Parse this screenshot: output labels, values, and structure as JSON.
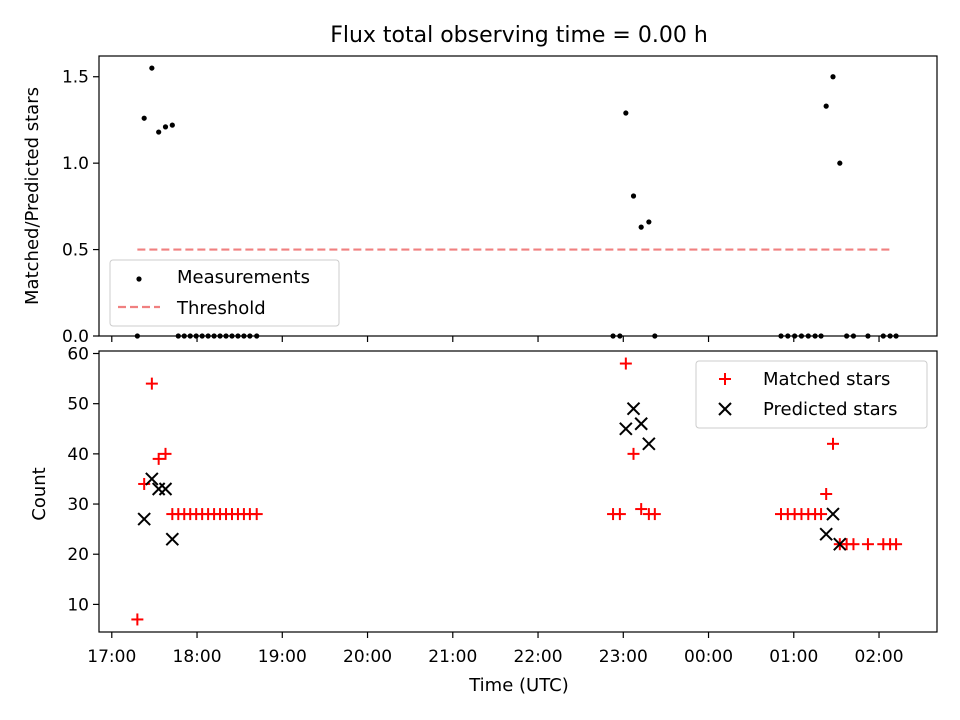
{
  "figure": {
    "title": "Flux total observing time = 0.00 h"
  },
  "chart_data": [
    {
      "type": "scatter",
      "title": "Flux total observing time = 0.00 h",
      "xlabel": "",
      "ylabel": "Matched/Predicted stars",
      "xlim": [
        16.85,
        26.68
      ],
      "ylim": [
        0,
        1.62
      ],
      "yticks": [
        0.0,
        0.5,
        1.0,
        1.5
      ],
      "ytick_labels": [
        "0.0",
        "0.5",
        "1.0",
        "1.5"
      ],
      "legend": {
        "position": "lower-left",
        "entries": [
          "Measurements",
          "Threshold"
        ]
      },
      "series": [
        {
          "name": "Measurements",
          "marker": "dot",
          "color": "#000000",
          "points": [
            [
              17.3,
              0.0
            ],
            [
              17.38,
              1.26
            ],
            [
              17.47,
              1.55
            ],
            [
              17.55,
              1.18
            ],
            [
              17.63,
              1.21
            ],
            [
              17.71,
              1.22
            ],
            [
              17.78,
              0.0
            ],
            [
              17.85,
              0.0
            ],
            [
              17.92,
              0.0
            ],
            [
              17.99,
              0.0
            ],
            [
              18.06,
              0.0
            ],
            [
              18.13,
              0.0
            ],
            [
              18.2,
              0.0
            ],
            [
              18.27,
              0.0
            ],
            [
              18.34,
              0.0
            ],
            [
              18.41,
              0.0
            ],
            [
              18.48,
              0.0
            ],
            [
              18.55,
              0.0
            ],
            [
              18.62,
              0.0
            ],
            [
              18.7,
              0.0
            ],
            [
              22.88,
              0.0
            ],
            [
              22.96,
              0.0
            ],
            [
              23.03,
              1.29
            ],
            [
              23.12,
              0.81
            ],
            [
              23.21,
              0.63
            ],
            [
              23.3,
              0.66
            ],
            [
              23.37,
              0.0
            ],
            [
              24.85,
              0.0
            ],
            [
              24.93,
              0.0
            ],
            [
              25.01,
              0.0
            ],
            [
              25.09,
              0.0
            ],
            [
              25.17,
              0.0
            ],
            [
              25.25,
              0.0
            ],
            [
              25.32,
              0.0
            ],
            [
              25.38,
              1.33
            ],
            [
              25.46,
              1.5
            ],
            [
              25.54,
              1.0
            ],
            [
              25.62,
              0.0
            ],
            [
              25.7,
              0.0
            ],
            [
              25.87,
              0.0
            ],
            [
              26.05,
              0.0
            ],
            [
              26.13,
              0.0
            ],
            [
              26.2,
              0.0
            ]
          ]
        },
        {
          "name": "Threshold",
          "style": "dashed",
          "color": "#f08080",
          "points": [
            [
              17.3,
              0.5
            ],
            [
              26.15,
              0.5
            ]
          ]
        }
      ]
    },
    {
      "type": "scatter",
      "title": "",
      "xlabel": "Time (UTC)",
      "ylabel": "Count",
      "xlim": [
        16.85,
        26.68
      ],
      "ylim": [
        4.5,
        60.5
      ],
      "yticks": [
        10,
        20,
        30,
        40,
        50,
        60
      ],
      "ytick_labels": [
        "10",
        "20",
        "30",
        "40",
        "50",
        "60"
      ],
      "xticks": [
        17,
        18,
        19,
        20,
        21,
        22,
        23,
        24,
        25,
        26
      ],
      "xtick_labels": [
        "17:00",
        "18:00",
        "19:00",
        "20:00",
        "21:00",
        "22:00",
        "23:00",
        "00:00",
        "01:00",
        "02:00"
      ],
      "legend": {
        "position": "upper-right",
        "entries": [
          "Matched stars",
          "Predicted stars"
        ]
      },
      "series": [
        {
          "name": "Matched stars",
          "marker": "plus",
          "color": "#ff0000",
          "points": [
            [
              17.3,
              7
            ],
            [
              17.38,
              34
            ],
            [
              17.47,
              54
            ],
            [
              17.55,
              39
            ],
            [
              17.63,
              40
            ],
            [
              17.71,
              28
            ],
            [
              17.78,
              28
            ],
            [
              17.85,
              28
            ],
            [
              17.92,
              28
            ],
            [
              17.99,
              28
            ],
            [
              18.06,
              28
            ],
            [
              18.13,
              28
            ],
            [
              18.2,
              28
            ],
            [
              18.27,
              28
            ],
            [
              18.34,
              28
            ],
            [
              18.41,
              28
            ],
            [
              18.48,
              28
            ],
            [
              18.55,
              28
            ],
            [
              18.62,
              28
            ],
            [
              18.7,
              28
            ],
            [
              22.88,
              28
            ],
            [
              22.96,
              28
            ],
            [
              23.03,
              58
            ],
            [
              23.12,
              40
            ],
            [
              23.21,
              29
            ],
            [
              23.3,
              28
            ],
            [
              23.37,
              28
            ],
            [
              24.85,
              28
            ],
            [
              24.93,
              28
            ],
            [
              25.01,
              28
            ],
            [
              25.09,
              28
            ],
            [
              25.17,
              28
            ],
            [
              25.25,
              28
            ],
            [
              25.32,
              28
            ],
            [
              25.38,
              32
            ],
            [
              25.46,
              42
            ],
            [
              25.54,
              22
            ],
            [
              25.62,
              22
            ],
            [
              25.7,
              22
            ],
            [
              25.87,
              22
            ],
            [
              26.05,
              22
            ],
            [
              26.13,
              22
            ],
            [
              26.2,
              22
            ]
          ]
        },
        {
          "name": "Predicted stars",
          "marker": "x",
          "color": "#000000",
          "points": [
            [
              17.38,
              27
            ],
            [
              17.47,
              35
            ],
            [
              17.55,
              33
            ],
            [
              17.63,
              33
            ],
            [
              17.71,
              23
            ],
            [
              23.03,
              45
            ],
            [
              23.12,
              49
            ],
            [
              23.21,
              46
            ],
            [
              23.3,
              42
            ],
            [
              25.38,
              24
            ],
            [
              25.46,
              28
            ],
            [
              25.54,
              22
            ]
          ]
        }
      ]
    }
  ]
}
